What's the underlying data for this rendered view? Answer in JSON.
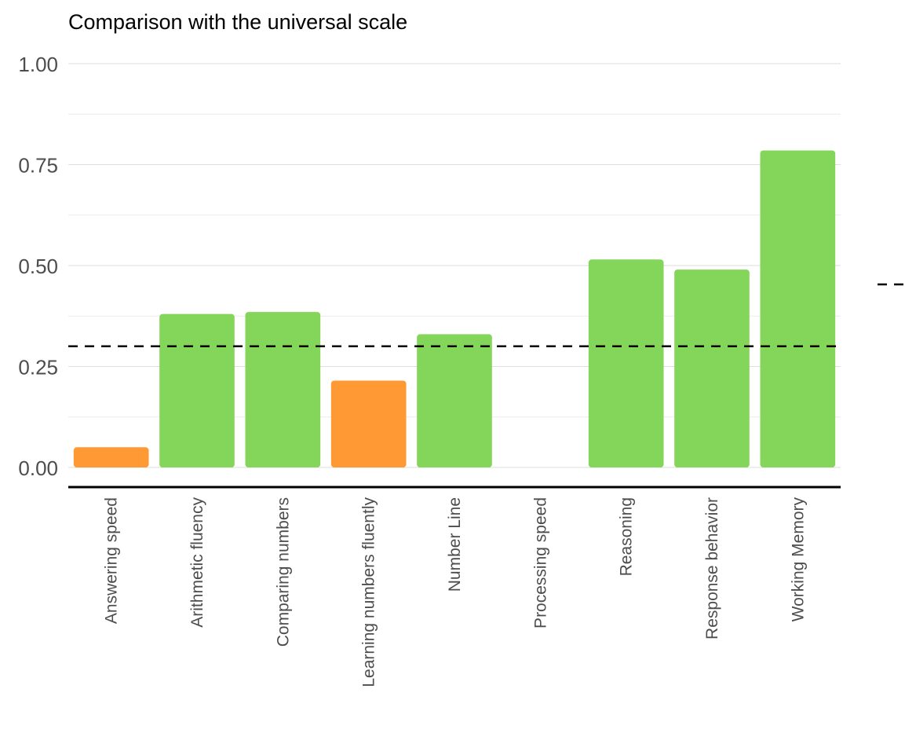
{
  "chart_data": {
    "type": "bar",
    "title": "Comparison with the universal scale",
    "xlabel": "",
    "ylabel": "",
    "ylim": [
      0,
      1
    ],
    "yticks": [
      0,
      0.25,
      0.5,
      0.75,
      1
    ],
    "ytick_labels": [
      "0.00",
      "0.25",
      "0.50",
      "0.75",
      "1.00"
    ],
    "categories": [
      "Answering speed",
      "Arithmetic fluency",
      "Comparing numbers",
      "Learning numbers fluently",
      "Number Line",
      "Processing speed",
      "Reasoning",
      "Response behavior",
      "Working Memory"
    ],
    "values": [
      0.05,
      0.38,
      0.385,
      0.215,
      0.33,
      null,
      0.515,
      0.49,
      0.785
    ],
    "bar_colors": [
      "#ff9933",
      "#84d65b",
      "#84d65b",
      "#ff9933",
      "#84d65b",
      null,
      "#84d65b",
      "#84d65b",
      "#84d65b"
    ],
    "reference_line": {
      "value": 0.3,
      "style": "dashed",
      "color": "#000000"
    },
    "grid": true,
    "legend": "right (partially cut off, dashed line key only)"
  }
}
